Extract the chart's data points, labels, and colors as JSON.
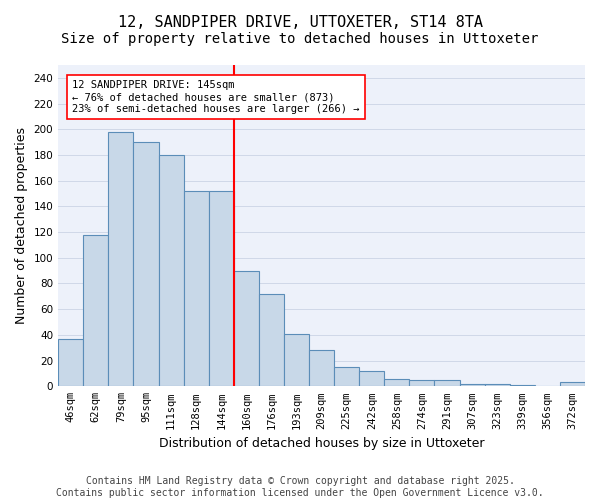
{
  "title": "12, SANDPIPER DRIVE, UTTOXETER, ST14 8TA",
  "subtitle": "Size of property relative to detached houses in Uttoxeter",
  "xlabel": "Distribution of detached houses by size in Uttoxeter",
  "ylabel": "Number of detached properties",
  "categories": [
    "46sqm",
    "62sqm",
    "79sqm",
    "95sqm",
    "111sqm",
    "128sqm",
    "144sqm",
    "160sqm",
    "176sqm",
    "193sqm",
    "209sqm",
    "225sqm",
    "242sqm",
    "258sqm",
    "274sqm",
    "291sqm",
    "307sqm",
    "323sqm",
    "339sqm",
    "356sqm",
    "372sqm"
  ],
  "bar_values": [
    37,
    118,
    198,
    190,
    180,
    152,
    152,
    90,
    72,
    41,
    28,
    15,
    12,
    6,
    5,
    5,
    2,
    2,
    1,
    0,
    3
  ],
  "bar_color": "#c8d8e8",
  "bar_edge_color": "#5b8db8",
  "vline_color": "red",
  "annotation_text": "12 SANDPIPER DRIVE: 145sqm\n← 76% of detached houses are smaller (873)\n23% of semi-detached houses are larger (266) →",
  "annotation_box_color": "white",
  "annotation_box_edge": "red",
  "ylim": [
    0,
    250
  ],
  "yticks": [
    0,
    20,
    40,
    60,
    80,
    100,
    120,
    140,
    160,
    180,
    200,
    220,
    240
  ],
  "grid_color": "#d0d8e8",
  "background_color": "#edf1fa",
  "footer": "Contains HM Land Registry data © Crown copyright and database right 2025.\nContains public sector information licensed under the Open Government Licence v3.0.",
  "title_fontsize": 11,
  "subtitle_fontsize": 10,
  "axis_label_fontsize": 9,
  "tick_fontsize": 7.5,
  "footer_fontsize": 7
}
